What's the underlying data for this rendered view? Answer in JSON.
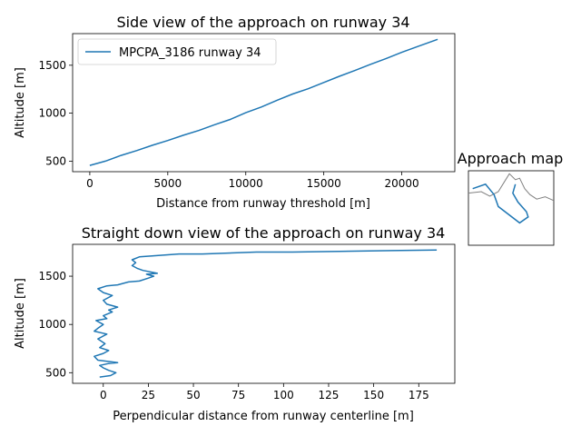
{
  "colors": {
    "series": "#1f77b4",
    "coast": "#808080",
    "axes": "#000000"
  },
  "chart_data": [
    {
      "type": "line",
      "title": "Side view of the approach on runway 34",
      "xlabel": "Distance from runway threshold [m]",
      "ylabel": "Altitude [m]",
      "xlim": [
        -1100,
        23400
      ],
      "ylim": [
        390,
        1830
      ],
      "xticks": [
        0,
        5000,
        10000,
        15000,
        20000
      ],
      "yticks": [
        500,
        1000,
        1500
      ],
      "legend": {
        "position": "top-left",
        "entries": [
          "MPCPA_3186 runway 34"
        ]
      },
      "grid": false,
      "series": [
        {
          "name": "MPCPA_3186 runway 34",
          "x": [
            0,
            1000,
            2000,
            3000,
            4000,
            5000,
            6000,
            7000,
            8000,
            9000,
            10000,
            11000,
            12000,
            13000,
            14000,
            15000,
            16000,
            17000,
            18000,
            19000,
            20000,
            21000,
            22300
          ],
          "y": [
            455,
            500,
            560,
            610,
            665,
            715,
            770,
            820,
            880,
            935,
            1005,
            1065,
            1135,
            1200,
            1255,
            1320,
            1385,
            1445,
            1510,
            1570,
            1635,
            1695,
            1770
          ]
        }
      ]
    },
    {
      "type": "line",
      "title": "Straight down view of the approach on runway 34",
      "xlabel": "Perpendicular distance from runway centerline [m]",
      "ylabel": "Altitude [m]",
      "xlim": [
        -17,
        195
      ],
      "ylim": [
        390,
        1830
      ],
      "xticks": [
        0,
        25,
        50,
        75,
        100,
        125,
        150,
        175
      ],
      "yticks": [
        500,
        1000,
        1500
      ],
      "grid": false,
      "series": [
        {
          "x": [
            -2,
            4,
            7,
            3,
            0,
            -2,
            3,
            8,
            -3,
            -5,
            0,
            3,
            -2,
            1,
            -3,
            2,
            -5,
            -3,
            0,
            -4,
            2,
            0,
            5,
            3,
            8,
            2,
            0,
            5,
            0,
            -3,
            2,
            8,
            14,
            20,
            25,
            28,
            24,
            30,
            22,
            19,
            16,
            18,
            16,
            20,
            42,
            55,
            85,
            105,
            160,
            185
          ],
          "y": [
            455,
            470,
            500,
            525,
            550,
            575,
            595,
            605,
            630,
            670,
            700,
            730,
            760,
            800,
            850,
            900,
            930,
            960,
            1000,
            1040,
            1060,
            1090,
            1130,
            1150,
            1180,
            1210,
            1250,
            1300,
            1330,
            1370,
            1400,
            1410,
            1440,
            1450,
            1480,
            1500,
            1520,
            1530,
            1560,
            1580,
            1610,
            1640,
            1670,
            1700,
            1730,
            1730,
            1750,
            1750,
            1765,
            1772
          ]
        }
      ]
    },
    {
      "type": "line",
      "title": "Approach map",
      "series": [
        {
          "role": "track",
          "x": [
            0.05,
            0.2,
            0.3,
            0.35,
            0.6,
            0.7,
            0.68,
            0.58,
            0.52,
            0.55
          ],
          "y": [
            0.76,
            0.82,
            0.68,
            0.52,
            0.3,
            0.38,
            0.45,
            0.58,
            0.7,
            0.82
          ]
        },
        {
          "role": "coastline",
          "x": [
            0.0,
            0.15,
            0.25,
            0.35,
            0.42,
            0.48,
            0.55,
            0.6,
            0.66,
            0.72,
            0.8,
            0.9,
            1.0
          ],
          "y": [
            0.7,
            0.72,
            0.66,
            0.72,
            0.85,
            0.96,
            0.88,
            0.9,
            0.76,
            0.68,
            0.62,
            0.65,
            0.6
          ]
        }
      ]
    }
  ]
}
